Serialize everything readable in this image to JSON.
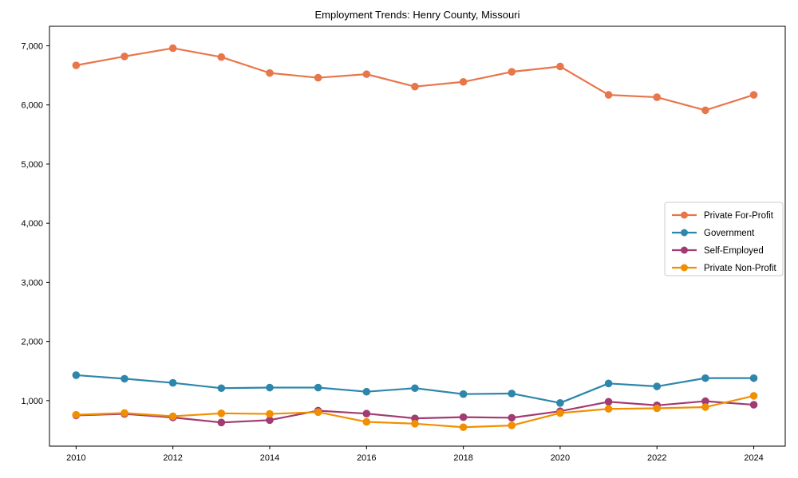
{
  "page": {
    "background": "#ffffff"
  },
  "chart_data": {
    "type": "line",
    "title": "Employment Trends: Henry County, Missouri",
    "xlabel": "",
    "ylabel": "",
    "grid": false,
    "legend_position": "center-right",
    "axis_color": "#000000",
    "legend_border_color": "#cccccc",
    "x": [
      2010,
      2011,
      2012,
      2013,
      2014,
      2015,
      2016,
      2017,
      2018,
      2019,
      2020,
      2021,
      2022,
      2023,
      2024
    ],
    "xticks": [
      2010,
      2012,
      2014,
      2016,
      2018,
      2020,
      2022,
      2024
    ],
    "yticks": [
      1000,
      2000,
      3000,
      4000,
      5000,
      6000,
      7000
    ],
    "ytick_labels": [
      "1,000",
      "2,000",
      "3,000",
      "4,000",
      "5,000",
      "6,000",
      "7,000"
    ],
    "xlim": [
      2009.45,
      2024.65
    ],
    "ylim": [
      230,
      7330
    ],
    "series": [
      {
        "name": "Private For-Profit",
        "color": "#E8764B",
        "values": [
          6670,
          6820,
          6960,
          6810,
          6540,
          6460,
          6520,
          6310,
          6390,
          6560,
          6650,
          6170,
          6130,
          5910,
          6170
        ]
      },
      {
        "name": "Government",
        "color": "#2E86AB",
        "values": [
          1430,
          1370,
          1300,
          1210,
          1220,
          1220,
          1150,
          1210,
          1110,
          1120,
          960,
          1290,
          1240,
          1380,
          1380
        ]
      },
      {
        "name": "Self-Employed",
        "color": "#A23B72",
        "values": [
          750,
          775,
          715,
          630,
          670,
          830,
          780,
          700,
          720,
          710,
          820,
          980,
          920,
          990,
          930
        ]
      },
      {
        "name": "Private Non-Profit",
        "color": "#F18F01",
        "values": [
          760,
          790,
          735,
          785,
          775,
          805,
          640,
          610,
          550,
          580,
          790,
          860,
          870,
          890,
          1080
        ]
      }
    ]
  }
}
